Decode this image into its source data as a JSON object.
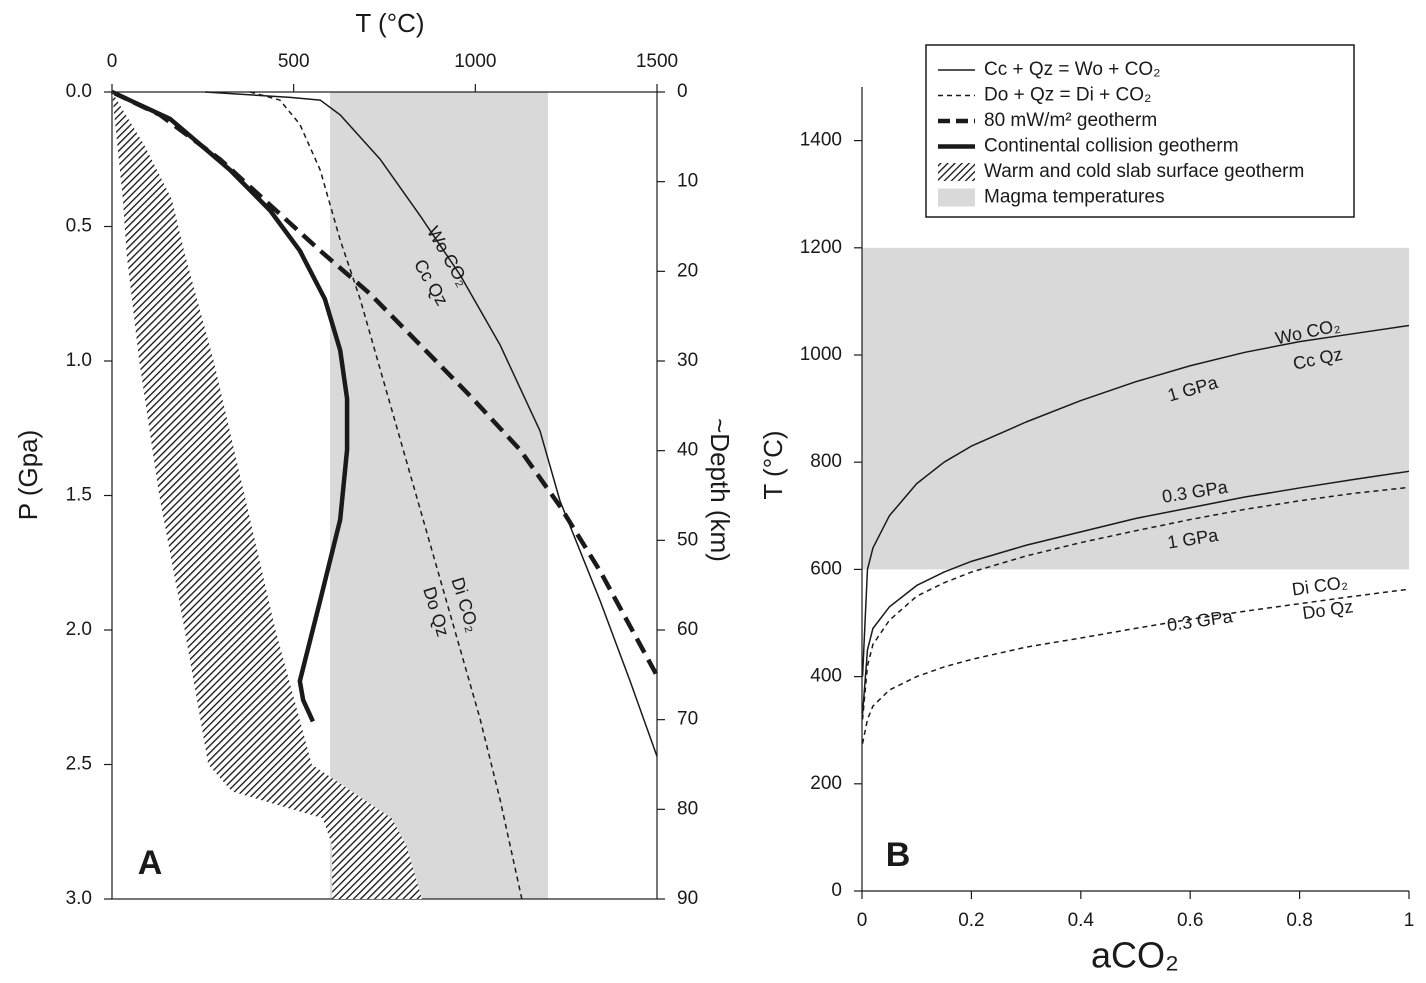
{
  "chart_data": [
    {
      "type": "line",
      "panel_label": "A",
      "x_label": "T (°C)",
      "y_label": "P (Gpa)",
      "y2_label": "~Depth (km)",
      "xlim": [
        0,
        1500
      ],
      "xticks": [
        0,
        500,
        1000,
        1500
      ],
      "x_axis_position": "top",
      "ylim": [
        0,
        3
      ],
      "yticks": [
        {
          "value": 0,
          "label": "0.0"
        },
        0.5,
        {
          "value": 1,
          "label": "1.0"
        },
        1.5,
        {
          "value": 2,
          "label": "2.0"
        },
        2.5,
        {
          "value": 3,
          "label": "3.0"
        }
      ],
      "y_reversed": true,
      "y2lim": [
        0,
        90
      ],
      "y2ticks": [
        0,
        10,
        20,
        30,
        40,
        50,
        60,
        70,
        80,
        90
      ],
      "series": [
        {
          "name": "Cc + Qz = Wo + CO₂",
          "style": "solid",
          "weight": "light",
          "color": "#1a1a1a",
          "x": [
            256,
            490,
            573,
            628,
            738,
            848,
            958,
            1068,
            1178,
            1233,
            1343,
            1426,
            1500
          ],
          "values": [
            0,
            0.02,
            0.03,
            0.085,
            0.25,
            0.46,
            0.68,
            0.94,
            1.26,
            1.52,
            1.89,
            2.19,
            2.47
          ]
        },
        {
          "name": "Do + Qz = Di + CO₂",
          "style": "dashed",
          "weight": "light",
          "color": "#1a1a1a",
          "x": [
            380,
            462,
            517,
            573,
            628,
            683,
            738,
            793,
            848,
            903,
            958,
            1013,
            1068,
            1128
          ],
          "values": [
            0,
            0.03,
            0.12,
            0.29,
            0.55,
            0.77,
            1.03,
            1.29,
            1.55,
            1.81,
            2.07,
            2.33,
            2.63,
            3.0
          ]
        },
        {
          "name": "80 mW/m² geotherm",
          "style": "dashed",
          "weight": "heavy",
          "color": "#1a1a1a",
          "x": [
            0,
            132,
            297,
            435,
            573,
            710,
            848,
            986,
            1123,
            1233,
            1343,
            1500
          ],
          "values": [
            0,
            0.085,
            0.25,
            0.42,
            0.59,
            0.75,
            0.94,
            1.13,
            1.33,
            1.54,
            1.78,
            2.17
          ]
        },
        {
          "name": "Continental collision geotherm",
          "style": "solid",
          "weight": "heavy",
          "color": "#1a1a1a",
          "x": [
            0,
            160,
            325,
            435,
            517,
            586,
            628,
            647,
            647,
            628,
            573,
            517,
            526,
            553
          ],
          "values": [
            0,
            0.1,
            0.29,
            0.44,
            0.59,
            0.77,
            0.96,
            1.14,
            1.33,
            1.59,
            1.89,
            2.19,
            2.26,
            2.34
          ]
        },
        {
          "name": "Warm and cold slab surface geotherm",
          "fill": "hatch",
          "values": [
            0,
            0.2,
            0.4,
            0.6,
            1.0,
            1.5,
            2.0,
            2.5,
            2.6,
            2.7,
            2.8,
            3.0
          ],
          "x_low": [
            0,
            15,
            30,
            40,
            75,
            130,
            200,
            265,
            330,
            580,
            606,
            606
          ],
          "x_high": [
            0,
            90,
            165,
            200,
            280,
            365,
            450,
            550,
            660,
            770,
            810,
            853
          ]
        },
        {
          "name": "Magma temperatures",
          "color": "#d9d9d9",
          "x_range": [
            600,
            1200
          ]
        }
      ],
      "annotations": [
        "Wo CO₂",
        "Cc Qz",
        "Di CO₂",
        "Do Qz"
      ]
    },
    {
      "type": "line",
      "panel_label": "B",
      "x_label": "aCO₂",
      "y_label": "T (°C)",
      "xlim": [
        0,
        1
      ],
      "xticks": [
        0,
        0.2,
        0.4,
        0.6,
        0.8,
        1
      ],
      "ylim": [
        0,
        1500
      ],
      "yticks": [
        0,
        200,
        400,
        600,
        800,
        1000,
        1200,
        1400
      ],
      "band_ylim": [
        600,
        1200
      ],
      "band_color": "#d9d9d9",
      "x": [
        0.001,
        0.01,
        0.02,
        0.05,
        0.1,
        0.15,
        0.2,
        0.3,
        0.4,
        0.5,
        0.6,
        0.7,
        0.8,
        0.9,
        1.0
      ],
      "series": [
        {
          "label": "1 GPa",
          "style": "solid",
          "color": "#1a1a1a",
          "values": [
            400,
            600,
            640,
            700,
            760,
            800,
            830,
            875,
            915,
            950,
            980,
            1005,
            1025,
            1040,
            1055
          ]
        },
        {
          "label": "0.3 GPa",
          "style": "solid",
          "color": "#1a1a1a",
          "values": [
            330,
            450,
            490,
            530,
            570,
            595,
            615,
            645,
            670,
            695,
            715,
            735,
            752,
            768,
            783
          ]
        },
        {
          "label": "1 GPa",
          "style": "dashed",
          "color": "#1a1a1a",
          "values": [
            320,
            420,
            460,
            505,
            550,
            575,
            595,
            625,
            650,
            672,
            693,
            712,
            728,
            742,
            753
          ]
        },
        {
          "label": "0.3 GPa",
          "style": "dashed",
          "color": "#1a1a1a",
          "values": [
            275,
            320,
            345,
            375,
            400,
            418,
            432,
            455,
            472,
            490,
            507,
            522,
            536,
            550,
            563
          ]
        }
      ],
      "annotations": [
        "Wo CO₂",
        "Cc Qz",
        "Di CO₂",
        "Do Qz"
      ]
    }
  ]
}
